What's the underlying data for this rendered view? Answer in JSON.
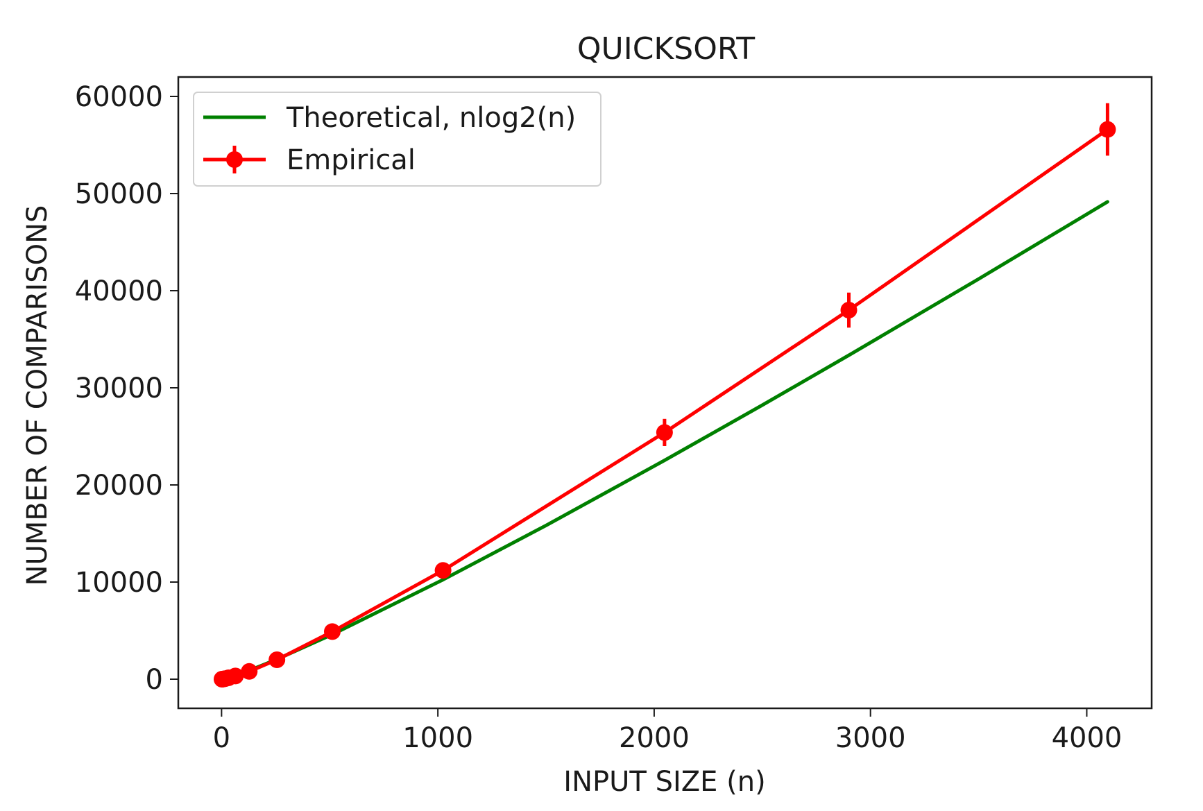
{
  "chart_data": {
    "type": "line",
    "title": "QUICKSORT",
    "xlabel": "INPUT SIZE (n)",
    "ylabel": "NUMBER OF COMPARISONS",
    "xlim": [
      -200,
      4300
    ],
    "ylim": [
      -3000,
      62000
    ],
    "x_ticks": [
      0,
      1000,
      2000,
      3000,
      4000
    ],
    "y_ticks": [
      0,
      10000,
      20000,
      30000,
      40000,
      50000,
      60000
    ],
    "x_tick_labels": [
      "0",
      "1000",
      "2000",
      "3000",
      "4000"
    ],
    "y_tick_labels": [
      "0",
      "10000",
      "20000",
      "30000",
      "40000",
      "50000",
      "60000"
    ],
    "grid": false,
    "legend": "upper-left",
    "series": [
      {
        "name": "Theoretical, nlog2(n)",
        "color": "#008000",
        "style": "line",
        "x": [
          2,
          4,
          8,
          16,
          32,
          64,
          128,
          256,
          512,
          1024,
          1500,
          2048,
          2500,
          2900,
          3500,
          4096
        ],
        "y": [
          2,
          8,
          24,
          64,
          160,
          384,
          896,
          2048,
          4608,
          10240,
          15826,
          22528,
          28220,
          33352,
          41204,
          49152
        ]
      },
      {
        "name": "Empirical",
        "color": "#ff0000",
        "style": "line-marker-errorbar",
        "x": [
          2,
          4,
          8,
          16,
          32,
          64,
          128,
          256,
          512,
          1024,
          2048,
          2900,
          4096
        ],
        "y": [
          1,
          5,
          17,
          50,
          140,
          330,
          800,
          2000,
          4900,
          11200,
          25400,
          38000,
          56600
        ],
        "error": [
          0,
          0,
          2,
          8,
          20,
          50,
          100,
          200,
          400,
          800,
          1400,
          1800,
          2700
        ]
      }
    ]
  }
}
